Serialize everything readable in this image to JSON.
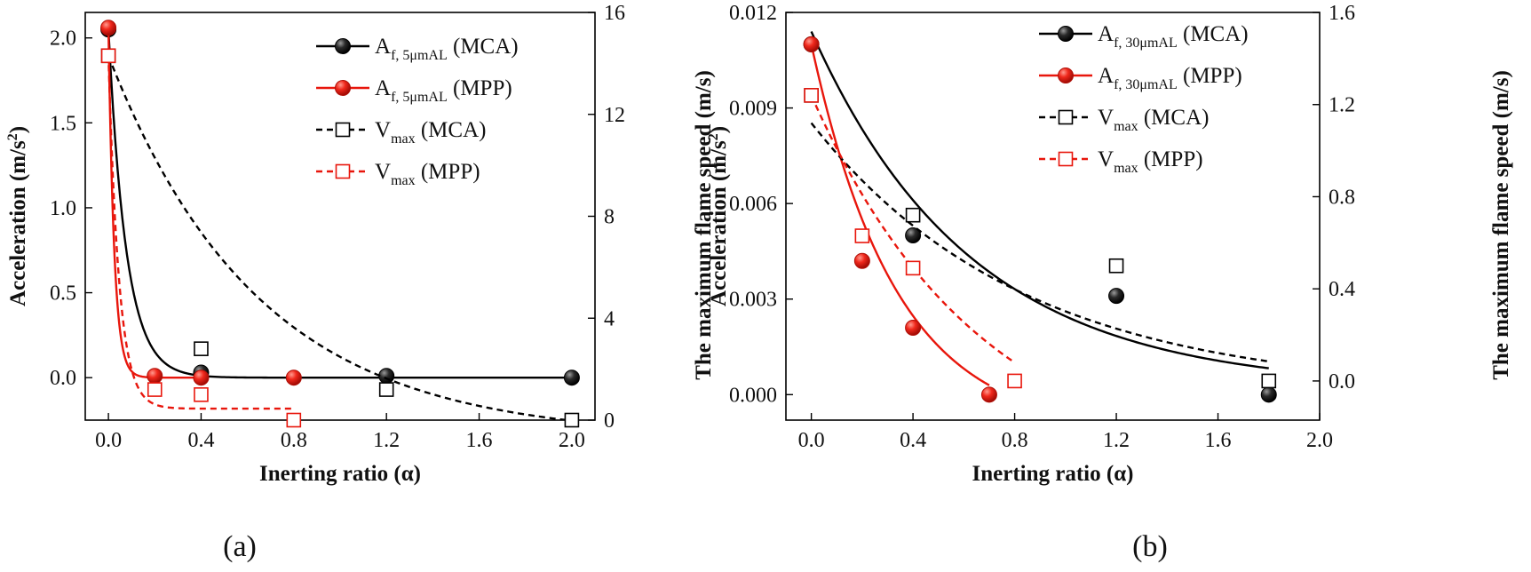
{
  "chart_data": [
    {
      "panel": "(a)",
      "type": "scatter",
      "xlabel": "Inerting ratio (α)",
      "ylabel": "Acceleration (m/s",
      "ylabel_sup": "2",
      "ylabel_end": ")",
      "y2label": "The maximum flame speed (m/s)",
      "xlim": [
        -0.1,
        2.1
      ],
      "ylim": [
        -0.25,
        2.15
      ],
      "y2lim": [
        0,
        16
      ],
      "xticks": [
        0.0,
        0.4,
        0.8,
        1.2,
        1.6,
        2.0
      ],
      "xtick_labels": [
        "0.0",
        "0.4",
        "0.8",
        "1.2",
        "1.6",
        "2.0"
      ],
      "yticks": [
        0.0,
        0.5,
        1.0,
        1.5,
        2.0
      ],
      "ytick_labels": [
        "0.0",
        "0.5",
        "1.0",
        "1.5",
        "2.0"
      ],
      "y2ticks": [
        0,
        4,
        8,
        12,
        16
      ],
      "y2tick_labels": [
        "0",
        "4",
        "8",
        "12",
        "16"
      ],
      "series": [
        {
          "name": "A_f,5μmAL (MCA)",
          "label_main": "A",
          "label_sub": "f, 5μmAL",
          "label_tail": " (MCA)",
          "axis": "left",
          "marker": "ball",
          "line": "solid",
          "color": "#000000",
          "x": [
            0.0,
            0.4,
            1.2,
            2.0
          ],
          "y": [
            2.05,
            0.03,
            0.01,
            0.0
          ],
          "fit": {
            "type": "exp",
            "a": 2.05,
            "k": 13,
            "c": 0.0,
            "x0": 0.0,
            "x1": 2.0
          }
        },
        {
          "name": "A_f,5μmAL (MPP)",
          "label_main": "A",
          "label_sub": "f, 5μmAL",
          "label_tail": " (MPP)",
          "axis": "left",
          "marker": "ball",
          "line": "solid",
          "color": "#e8160c",
          "x": [
            0.0,
            0.2,
            0.4,
            0.8
          ],
          "y": [
            2.06,
            0.01,
            0.0,
            0.0
          ],
          "fit": {
            "type": "exp",
            "a": 2.06,
            "k": 40,
            "c": 0.0,
            "x0": 0.0,
            "x1": 0.4
          }
        },
        {
          "name": "V_max (MCA)",
          "label_main": "V",
          "label_sub": "max",
          "label_tail": " (MCA)",
          "axis": "right",
          "marker": "square",
          "line": "dashed",
          "color": "#000000",
          "x": [
            0.0,
            0.4,
            1.2,
            2.0
          ],
          "y": [
            14.3,
            2.8,
            1.2,
            0.0
          ],
          "fit": {
            "type": "exp",
            "a": 15.0,
            "k": 1.55,
            "c": -0.7,
            "x0": 0.0,
            "x1": 2.0
          }
        },
        {
          "name": "V_max (MPP)",
          "label_main": "V",
          "label_sub": "max",
          "label_tail": " (MPP)",
          "axis": "right",
          "marker": "square",
          "line": "dashed",
          "color": "#e8160c",
          "x": [
            0.0,
            0.2,
            0.4,
            0.8
          ],
          "y": [
            14.3,
            1.2,
            1.0,
            0.0
          ],
          "fit": {
            "type": "exp",
            "a": 13.9,
            "k": 22,
            "c": 0.45,
            "x0": 0.0,
            "x1": 0.8
          }
        }
      ]
    },
    {
      "panel": "(b)",
      "type": "scatter",
      "xlabel": "Inerting ratio (α)",
      "ylabel": "Acceleration (m/s",
      "ylabel_sup": "2",
      "ylabel_end": ")",
      "y2label": "The maximum flame speed (m/s)",
      "xlim": [
        -0.1,
        2.0
      ],
      "ylim": [
        -0.0008,
        0.012
      ],
      "y2lim": [
        -0.17,
        1.6
      ],
      "xticks": [
        0.0,
        0.4,
        0.8,
        1.2,
        1.6,
        2.0
      ],
      "xtick_labels": [
        "0.0",
        "0.4",
        "0.8",
        "1.2",
        "1.6",
        "2.0"
      ],
      "yticks": [
        0.0,
        0.003,
        0.006,
        0.009,
        0.012
      ],
      "ytick_labels": [
        "0.000",
        "0.003",
        "0.006",
        "0.009",
        "0.012"
      ],
      "y2ticks": [
        0.0,
        0.4,
        0.8,
        1.2,
        1.6
      ],
      "y2tick_labels": [
        "0.0",
        "0.4",
        "0.8",
        "1.2",
        "1.6"
      ],
      "series": [
        {
          "name": "A_f,30μmAL (MCA)",
          "label_main": "A",
          "label_sub": "f, 30μmAL",
          "label_tail": " (MCA)",
          "axis": "left",
          "marker": "ball",
          "line": "solid",
          "color": "#000000",
          "x": [
            0.0,
            0.4,
            1.2,
            1.8
          ],
          "y": [
            0.011,
            0.005,
            0.0031,
            0.0
          ],
          "fit": {
            "type": "exp",
            "a": 0.0112,
            "k": 1.6,
            "c": 0.0002,
            "x0": 0.0,
            "x1": 1.8
          }
        },
        {
          "name": "A_f,30μmAL (MPP)",
          "label_main": "A",
          "label_sub": "f, 30μmAL",
          "label_tail": " (MPP)",
          "axis": "left",
          "marker": "ball",
          "line": "solid",
          "color": "#e8160c",
          "x": [
            0.0,
            0.2,
            0.4,
            0.7
          ],
          "y": [
            0.011,
            0.0042,
            0.0021,
            0.0
          ],
          "fit": {
            "type": "exp",
            "a": 0.0122,
            "k": 3.0,
            "c": -0.0012,
            "x0": 0.0,
            "x1": 0.7
          }
        },
        {
          "name": "V_max (MCA)",
          "label_main": "V",
          "label_sub": "max",
          "label_tail": " (MCA)",
          "axis": "right",
          "marker": "square",
          "line": "dashed",
          "color": "#000000",
          "x": [
            0.0,
            0.4,
            1.2,
            1.8
          ],
          "y": [
            1.24,
            0.72,
            0.5,
            0.0
          ],
          "fit": {
            "type": "exp",
            "a": 1.17,
            "k": 1.2,
            "c": -0.05,
            "x0": 0.0,
            "x1": 1.8
          }
        },
        {
          "name": "V_max (MPP)",
          "label_main": "V",
          "label_sub": "max",
          "label_tail": " (MPP)",
          "axis": "right",
          "marker": "square",
          "line": "dashed",
          "color": "#e8160c",
          "x": [
            0.0,
            0.2,
            0.4,
            0.8
          ],
          "y": [
            1.24,
            0.63,
            0.49,
            0.0
          ],
          "fit": {
            "type": "exp",
            "a": 1.66,
            "k": 1.5,
            "c": -0.42,
            "x0": 0.0,
            "x1": 0.8
          }
        }
      ]
    }
  ]
}
